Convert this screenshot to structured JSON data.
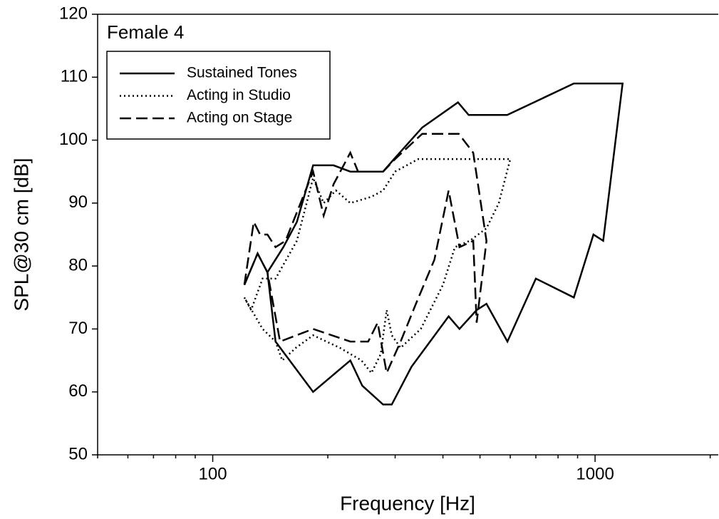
{
  "chart_data": {
    "type": "line",
    "title": "Female 4",
    "xlabel": "Frequency [Hz]",
    "ylabel": "SPL@30 cm [dB]",
    "xscale": "log",
    "xlim": [
      50,
      2100
    ],
    "ylim": [
      50,
      120
    ],
    "xticks": [
      100,
      1000
    ],
    "xminorticks": [
      50,
      60,
      70,
      80,
      90,
      200,
      300,
      400,
      500,
      600,
      700,
      800,
      900,
      2000
    ],
    "yticks": [
      50,
      60,
      70,
      80,
      90,
      100,
      110,
      120
    ],
    "legend": "upper left",
    "series": [
      {
        "name": "Sustained Tones",
        "color": "#000000",
        "linestyle": "solid",
        "x": [
          121,
          131,
          139,
          153,
          166,
          183,
          207,
          229,
          279,
          298,
          353,
          438,
          467,
          589,
          880,
          1180,
          1050,
          990,
          880,
          700,
          590,
          520,
          490,
          442,
          414,
          331,
          294,
          279,
          246,
          229,
          183,
          146,
          139
        ],
        "y": [
          77,
          82,
          79,
          83,
          87,
          96,
          96,
          95,
          95,
          97,
          102,
          106,
          104,
          104,
          109,
          109,
          84,
          85,
          75,
          78,
          68,
          74,
          73,
          70,
          72,
          64,
          58,
          58,
          61,
          65,
          60,
          68,
          79
        ]
      },
      {
        "name": "Acting in Studio",
        "color": "#000000",
        "linestyle": "dotted",
        "x": [
          121,
          126,
          135,
          146,
          166,
          183,
          195,
          210,
          229,
          260,
          279,
          300,
          345,
          600,
          560,
          520,
          470,
          430,
          400,
          350,
          310,
          294,
          285,
          275,
          260,
          245,
          215,
          183,
          165,
          152,
          146,
          135,
          121
        ],
        "y": [
          75,
          73,
          78,
          78,
          84,
          94,
          90,
          92,
          90,
          91,
          92,
          95,
          97,
          97,
          90,
          86,
          84,
          83,
          77,
          70,
          67,
          69,
          73,
          66,
          63,
          65,
          67,
          69,
          67,
          65,
          68,
          70,
          75
        ]
      },
      {
        "name": "Acting on Stage",
        "color": "#000000",
        "linestyle": "dashed",
        "x": [
          121,
          128,
          133,
          139,
          146,
          155,
          183,
          195,
          207,
          229,
          240,
          260,
          279,
          300,
          353,
          440,
          480,
          520,
          490,
          480,
          442,
          414,
          380,
          340,
          310,
          285,
          270,
          255,
          229,
          183,
          150,
          139,
          131,
          121
        ],
        "y": [
          77,
          87,
          85,
          85,
          83,
          84,
          95,
          88,
          93,
          98,
          95,
          95,
          95,
          97,
          101,
          101,
          98,
          84,
          71,
          84,
          83,
          92,
          81,
          74,
          68,
          63,
          71,
          68,
          68,
          70,
          68,
          79,
          82,
          77
        ]
      }
    ]
  }
}
